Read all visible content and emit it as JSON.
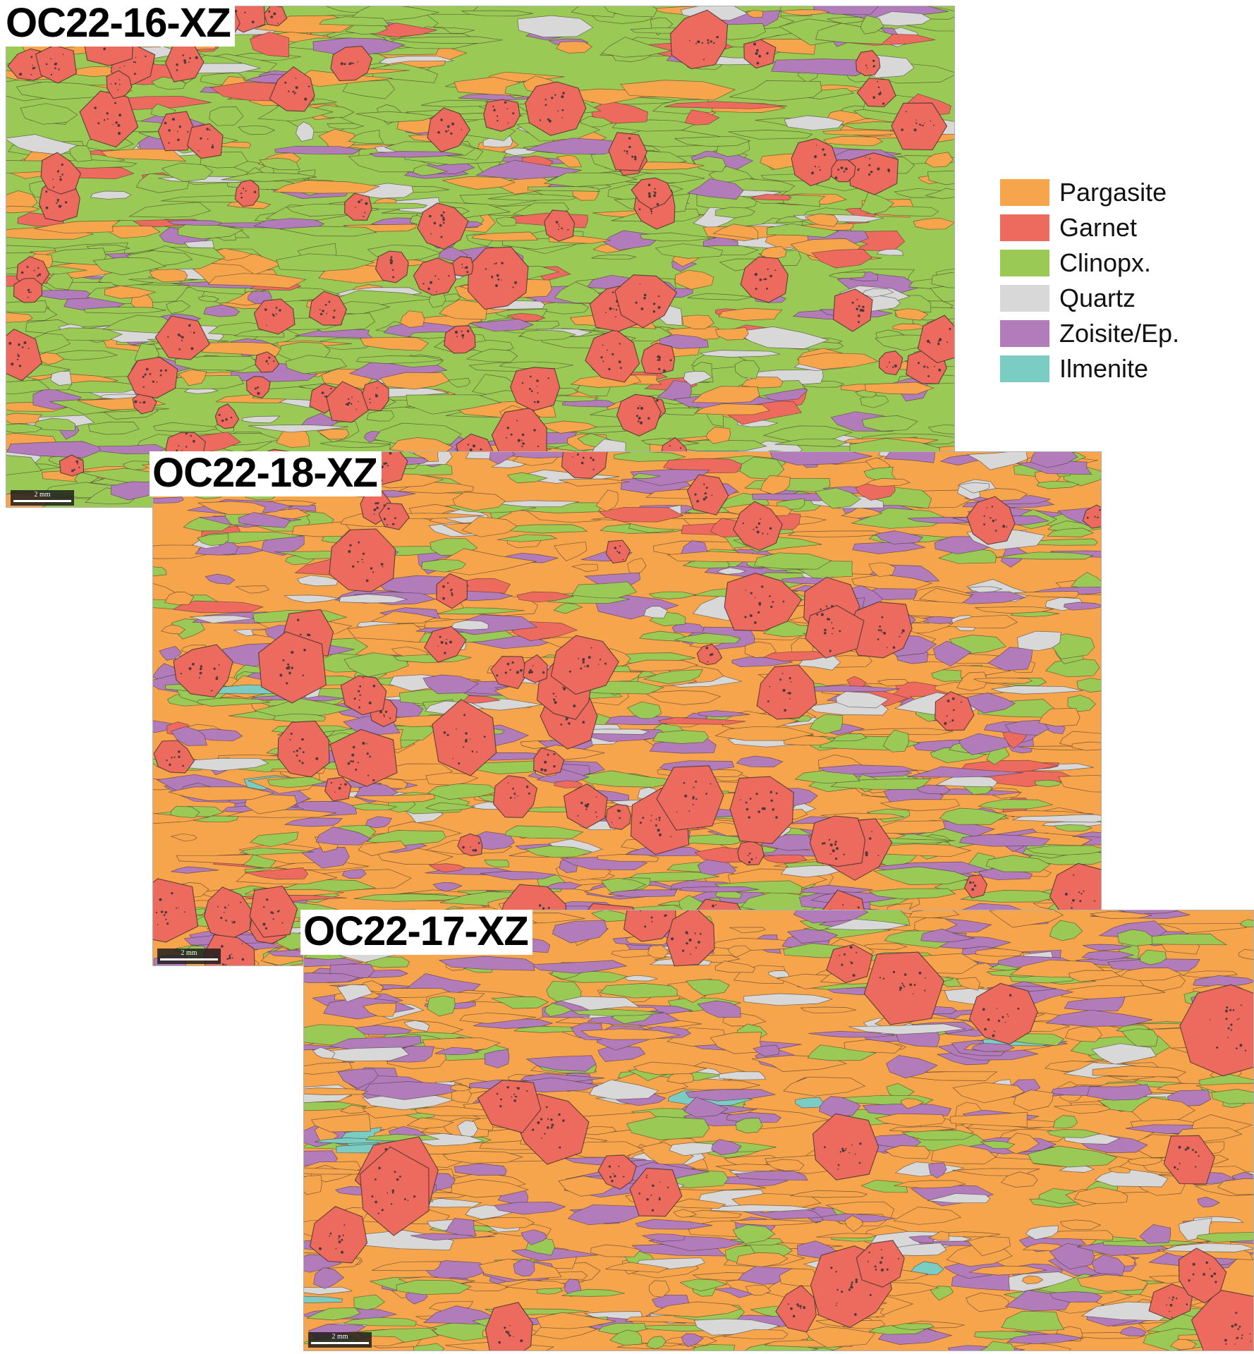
{
  "colors": {
    "pargasite": "#f6a54c",
    "garnet": "#ec6a5e",
    "clinopx": "#9bc955",
    "quartz": "#d8d8d8",
    "zoisite": "#b27cbb",
    "ilmenite": "#7bcdc3",
    "boundary": "#3a2f2a"
  },
  "panels": [
    {
      "id": "p16",
      "title": "OC22-16-XZ",
      "scale_label": "2 mm"
    },
    {
      "id": "p18",
      "title": "OC22-18-XZ",
      "scale_label": "2 mm"
    },
    {
      "id": "p17",
      "title": "OC22-17-XZ",
      "scale_label": "2 mm"
    }
  ],
  "legend": {
    "items": [
      {
        "label": "Pargasite",
        "color": "#f6a54c"
      },
      {
        "label": "Garnet",
        "color": "#ec6a5e"
      },
      {
        "label": "Clinopx.",
        "color": "#9bc955"
      },
      {
        "label": "Quartz",
        "color": "#d8d8d8"
      },
      {
        "label": "Zoisite/Ep.",
        "color": "#b27cbb"
      },
      {
        "label": "Ilmenite",
        "color": "#7bcdc3"
      }
    ]
  }
}
